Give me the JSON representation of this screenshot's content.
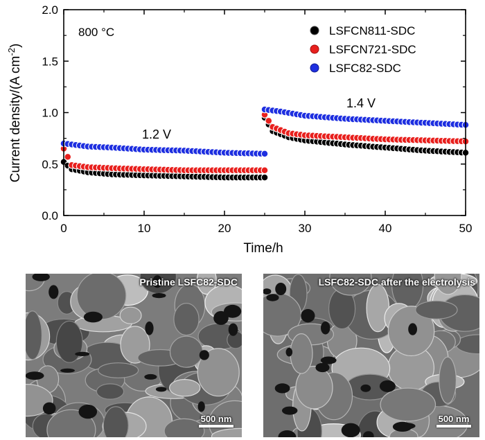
{
  "chart_data": {
    "type": "scatter",
    "xlabel": "Time/h",
    "ylabel": "Current density/(A cm",
    "ylabel_sup": "-2",
    "ylabel_close": ")",
    "xlim": [
      0,
      50
    ],
    "ylim": [
      0.0,
      2.0
    ],
    "xticks": [
      "0",
      "10",
      "20",
      "30",
      "40",
      "50"
    ],
    "yticks": [
      "0.0",
      "0.5",
      "1.0",
      "1.5",
      "2.0"
    ],
    "annotations": {
      "temperature": "800 °C",
      "voltage_low": "1.2 V",
      "voltage_high": "1.4 V"
    },
    "legend_position": "top-right",
    "series": [
      {
        "name": "LSFCN811-SDC",
        "color": "#000000",
        "segments": [
          {
            "t_start": 0,
            "t_end": 25,
            "keypoints": [
              [
                0,
                0.52
              ],
              [
                1,
                0.45
              ],
              [
                3,
                0.42
              ],
              [
                6,
                0.4
              ],
              [
                10,
                0.39
              ],
              [
                15,
                0.38
              ],
              [
                20,
                0.37
              ],
              [
                25,
                0.37
              ]
            ]
          },
          {
            "t_start": 25,
            "t_end": 50,
            "keypoints": [
              [
                25,
                0.95
              ],
              [
                26,
                0.82
              ],
              [
                28,
                0.76
              ],
              [
                30,
                0.73
              ],
              [
                35,
                0.69
              ],
              [
                40,
                0.66
              ],
              [
                45,
                0.63
              ],
              [
                50,
                0.61
              ]
            ]
          }
        ]
      },
      {
        "name": "LSFCN721-SDC",
        "color": "#e8201d",
        "segments": [
          {
            "t_start": 0,
            "t_end": 25,
            "keypoints": [
              [
                0,
                0.65
              ],
              [
                1,
                0.49
              ],
              [
                3,
                0.47
              ],
              [
                6,
                0.46
              ],
              [
                10,
                0.45
              ],
              [
                15,
                0.44
              ],
              [
                20,
                0.44
              ],
              [
                25,
                0.44
              ]
            ]
          },
          {
            "t_start": 25,
            "t_end": 50,
            "keypoints": [
              [
                25,
                0.98
              ],
              [
                26,
                0.86
              ],
              [
                28,
                0.8
              ],
              [
                30,
                0.78
              ],
              [
                35,
                0.76
              ],
              [
                40,
                0.74
              ],
              [
                45,
                0.73
              ],
              [
                50,
                0.72
              ]
            ]
          }
        ]
      },
      {
        "name": "LSFC82-SDC",
        "color": "#1e2fe0",
        "segments": [
          {
            "t_start": 0,
            "t_end": 25,
            "keypoints": [
              [
                0,
                0.7
              ],
              [
                3,
                0.67
              ],
              [
                6,
                0.66
              ],
              [
                10,
                0.64
              ],
              [
                15,
                0.63
              ],
              [
                20,
                0.61
              ],
              [
                25,
                0.6
              ]
            ]
          },
          {
            "t_start": 25,
            "t_end": 50,
            "keypoints": [
              [
                25,
                1.03
              ],
              [
                27,
                1.01
              ],
              [
                30,
                0.97
              ],
              [
                35,
                0.94
              ],
              [
                40,
                0.92
              ],
              [
                45,
                0.9
              ],
              [
                50,
                0.88
              ]
            ]
          }
        ]
      }
    ]
  },
  "sem_images": [
    {
      "title": "Pristine LSFC82-SDC",
      "scale_bar": "500 nm",
      "tone": "#7c7c7c"
    },
    {
      "title": "LSFC82-SDC after the electrolysis",
      "scale_bar": "500 nm",
      "tone": "#6e6e6e"
    }
  ]
}
